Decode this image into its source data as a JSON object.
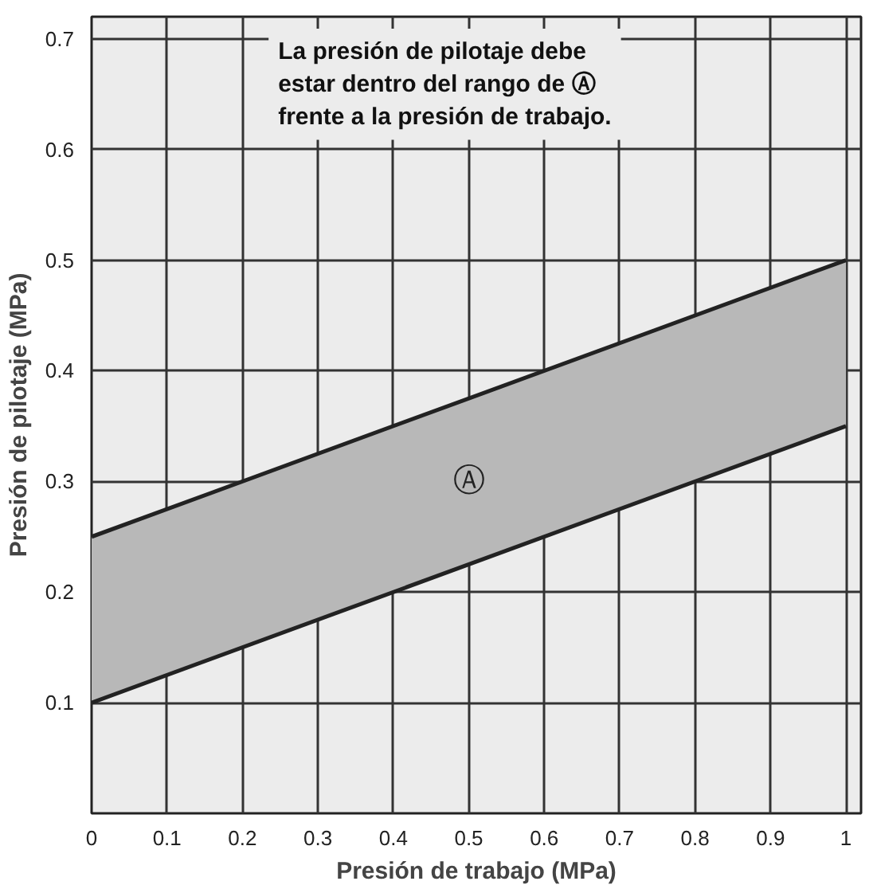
{
  "chart_data": {
    "type": "line",
    "xlabel": "Presión de trabajo (MPa)",
    "ylabel": "Presión de pilotaje (MPa)",
    "series": [
      {
        "values": [
          0.1,
          0.35
        ],
        "lower": [
          0.1,
          0.35
        ],
        "upper": [
          0.25,
          0.5
        ],
        "color": "#222222"
      },
      {
        "values": [
          0.25,
          0.5
        ],
        "color": "#222222"
      }
    ],
    "x": [
      0,
      1
    ],
    "xlim": [
      0,
      1.02
    ],
    "ylim": [
      0,
      0.72
    ],
    "xticks": [
      0,
      0.1,
      0.2,
      0.3,
      0.4,
      0.5,
      0.6,
      0.7,
      0.8,
      0.9,
      1
    ],
    "yticks": [
      0.1,
      0.2,
      0.3,
      0.4,
      0.5,
      0.6,
      0.7
    ],
    "grid": true,
    "line_style": "solid",
    "annotations": [
      "La presión de pilotaje debe\nestar dentro del rango de  Ⓐ\nfrente a la presión de trabajo.",
      "Ⓐ"
    ]
  }
}
